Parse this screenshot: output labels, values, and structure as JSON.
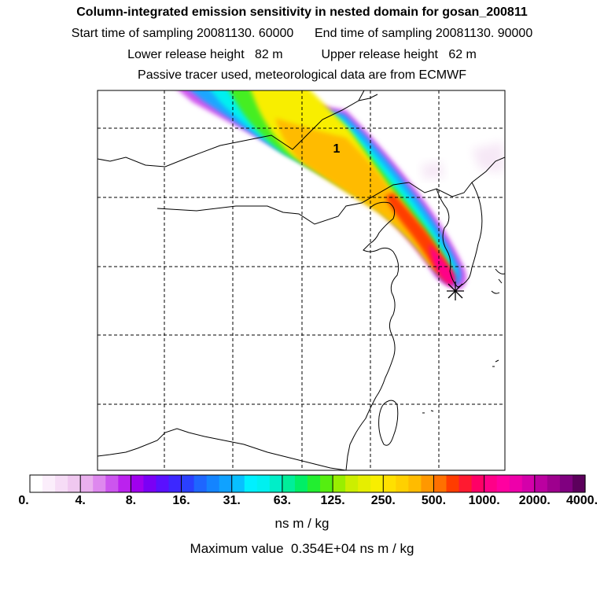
{
  "header": {
    "title": "Column-integrated emission sensitivity in nested domain for gosan_200811",
    "line2": "Start time of sampling 20081130. 60000      End time of sampling 20081130. 90000",
    "line3": "Lower release height   82 m           Upper release height   62 m",
    "line4": "Passive tracer used, meteorological data are from ECMWF"
  },
  "map": {
    "cluster_label": "1",
    "receptor_marker": "star-marker"
  },
  "colorbar": {
    "tick_labels": [
      "0.",
      "4.",
      "8.",
      "16.",
      "31.",
      "63.",
      "125.",
      "250.",
      "500.",
      "1000.",
      "2000.",
      "4000."
    ],
    "units": "ns m / kg",
    "colors": [
      "#ffffff",
      "#fbeefb",
      "#f6dcf6",
      "#f0c8f0",
      "#eab0ee",
      "#de88ee",
      "#cc55ee",
      "#bb22ee",
      "#a000ee",
      "#7a00f5",
      "#5a10ff",
      "#3c28ff",
      "#2a40ff",
      "#1e66ff",
      "#1484ff",
      "#10a2ff",
      "#08c0ff",
      "#00f0ff",
      "#00f0f0",
      "#00eec8",
      "#00ee9a",
      "#00ee66",
      "#22ee30",
      "#55ee10",
      "#99ee00",
      "#ccee00",
      "#e6ee00",
      "#f8ee00",
      "#ffe000",
      "#ffd000",
      "#ffbb00",
      "#ff9800",
      "#ff7000",
      "#ff3c00",
      "#ff1a30",
      "#ff0066",
      "#ff0088",
      "#ff00a0",
      "#ee00aa",
      "#d400aa",
      "#bb00a0",
      "#9e008e",
      "#800080",
      "#5c005c"
    ]
  },
  "footer": {
    "max_value": "Maximum value  0.354E+04 ns m / kg"
  }
}
